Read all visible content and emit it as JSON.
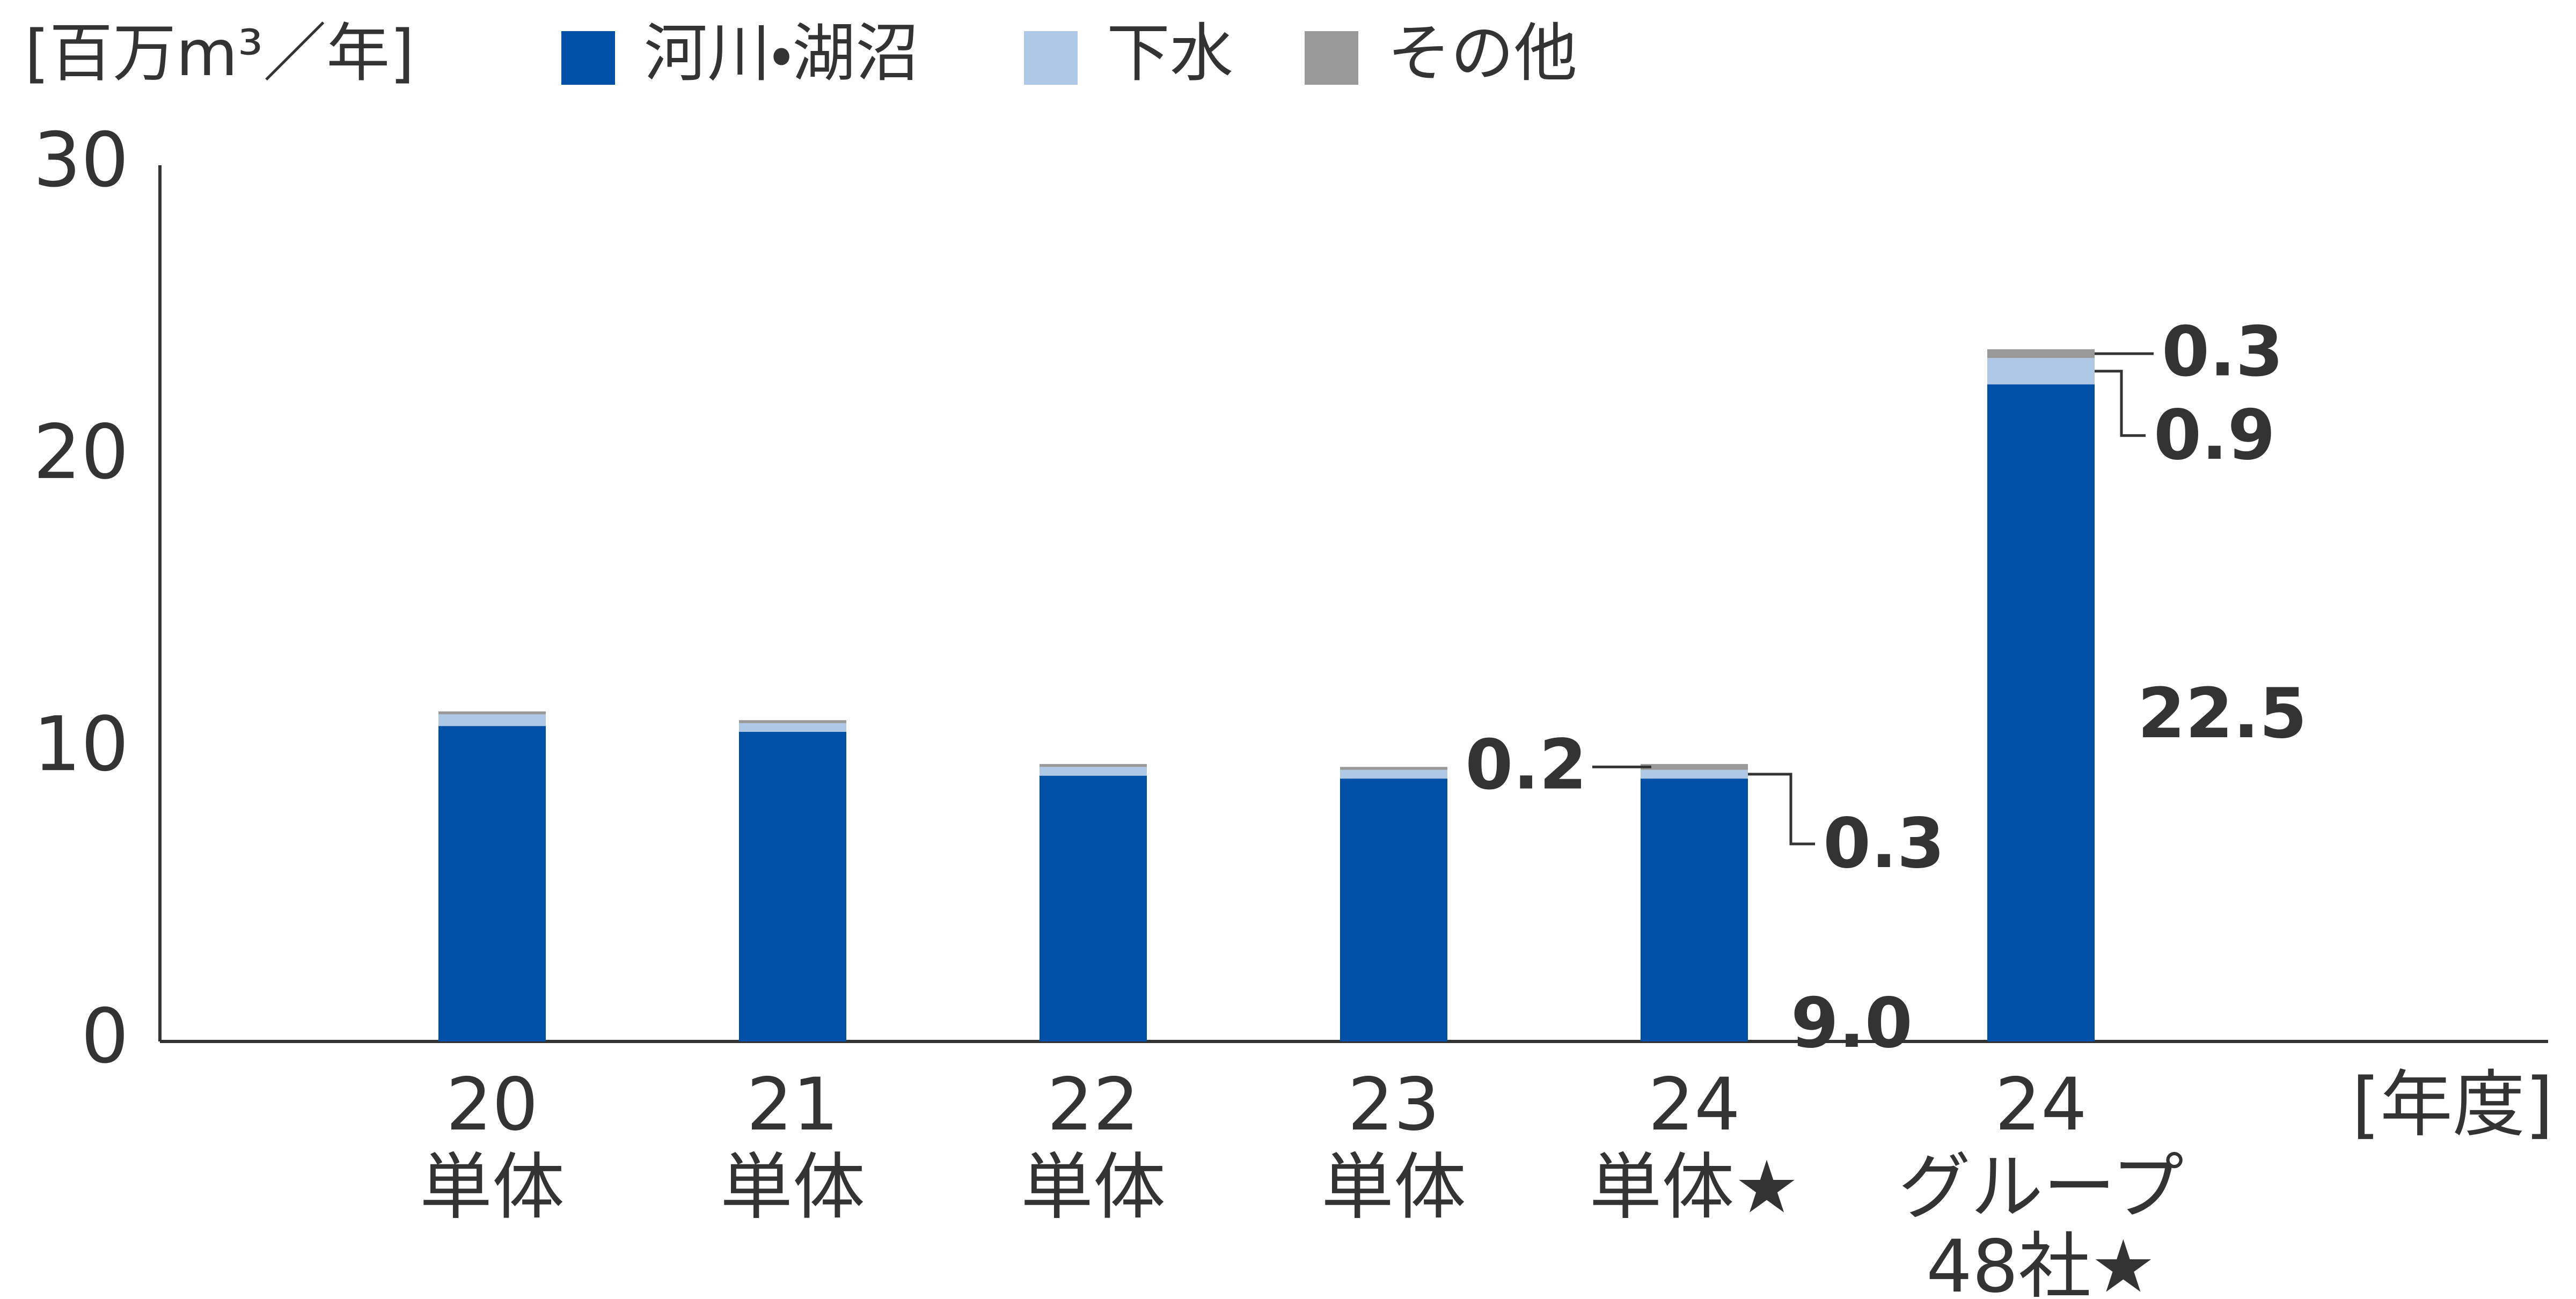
{
  "chart_data": {
    "type": "stacked_bar",
    "y_axis_label": "[百万m³／年]",
    "x_axis_label": "[年度]",
    "categories": [
      [
        "20",
        "単体"
      ],
      [
        "21",
        "単体"
      ],
      [
        "22",
        "単体"
      ],
      [
        "23",
        "単体"
      ],
      [
        "24",
        "単体★"
      ],
      [
        "24",
        "グループ",
        "48社★"
      ]
    ],
    "series": [
      {
        "name": "河川・湖沼",
        "color": "#0050a8",
        "values": [
          10.8,
          10.6,
          9.1,
          9.0,
          9.0,
          22.5
        ],
        "value_labels": [
          null,
          null,
          null,
          null,
          "9.0",
          "22.5"
        ]
      },
      {
        "name": "下水",
        "color": "#aec8e6",
        "values": [
          0.4,
          0.3,
          0.3,
          0.3,
          0.3,
          0.9
        ],
        "value_labels": [
          null,
          null,
          null,
          null,
          "0.3",
          "0.9"
        ]
      },
      {
        "name": "その他",
        "color": "#999999",
        "values": [
          0.1,
          0.1,
          0.1,
          0.1,
          0.2,
          0.3
        ],
        "value_labels": [
          null,
          null,
          null,
          null,
          "0.2",
          "0.3"
        ]
      }
    ],
    "ylim": [
      0,
      30
    ],
    "yticks": [
      0,
      10,
      20,
      30
    ],
    "grid": false
  }
}
